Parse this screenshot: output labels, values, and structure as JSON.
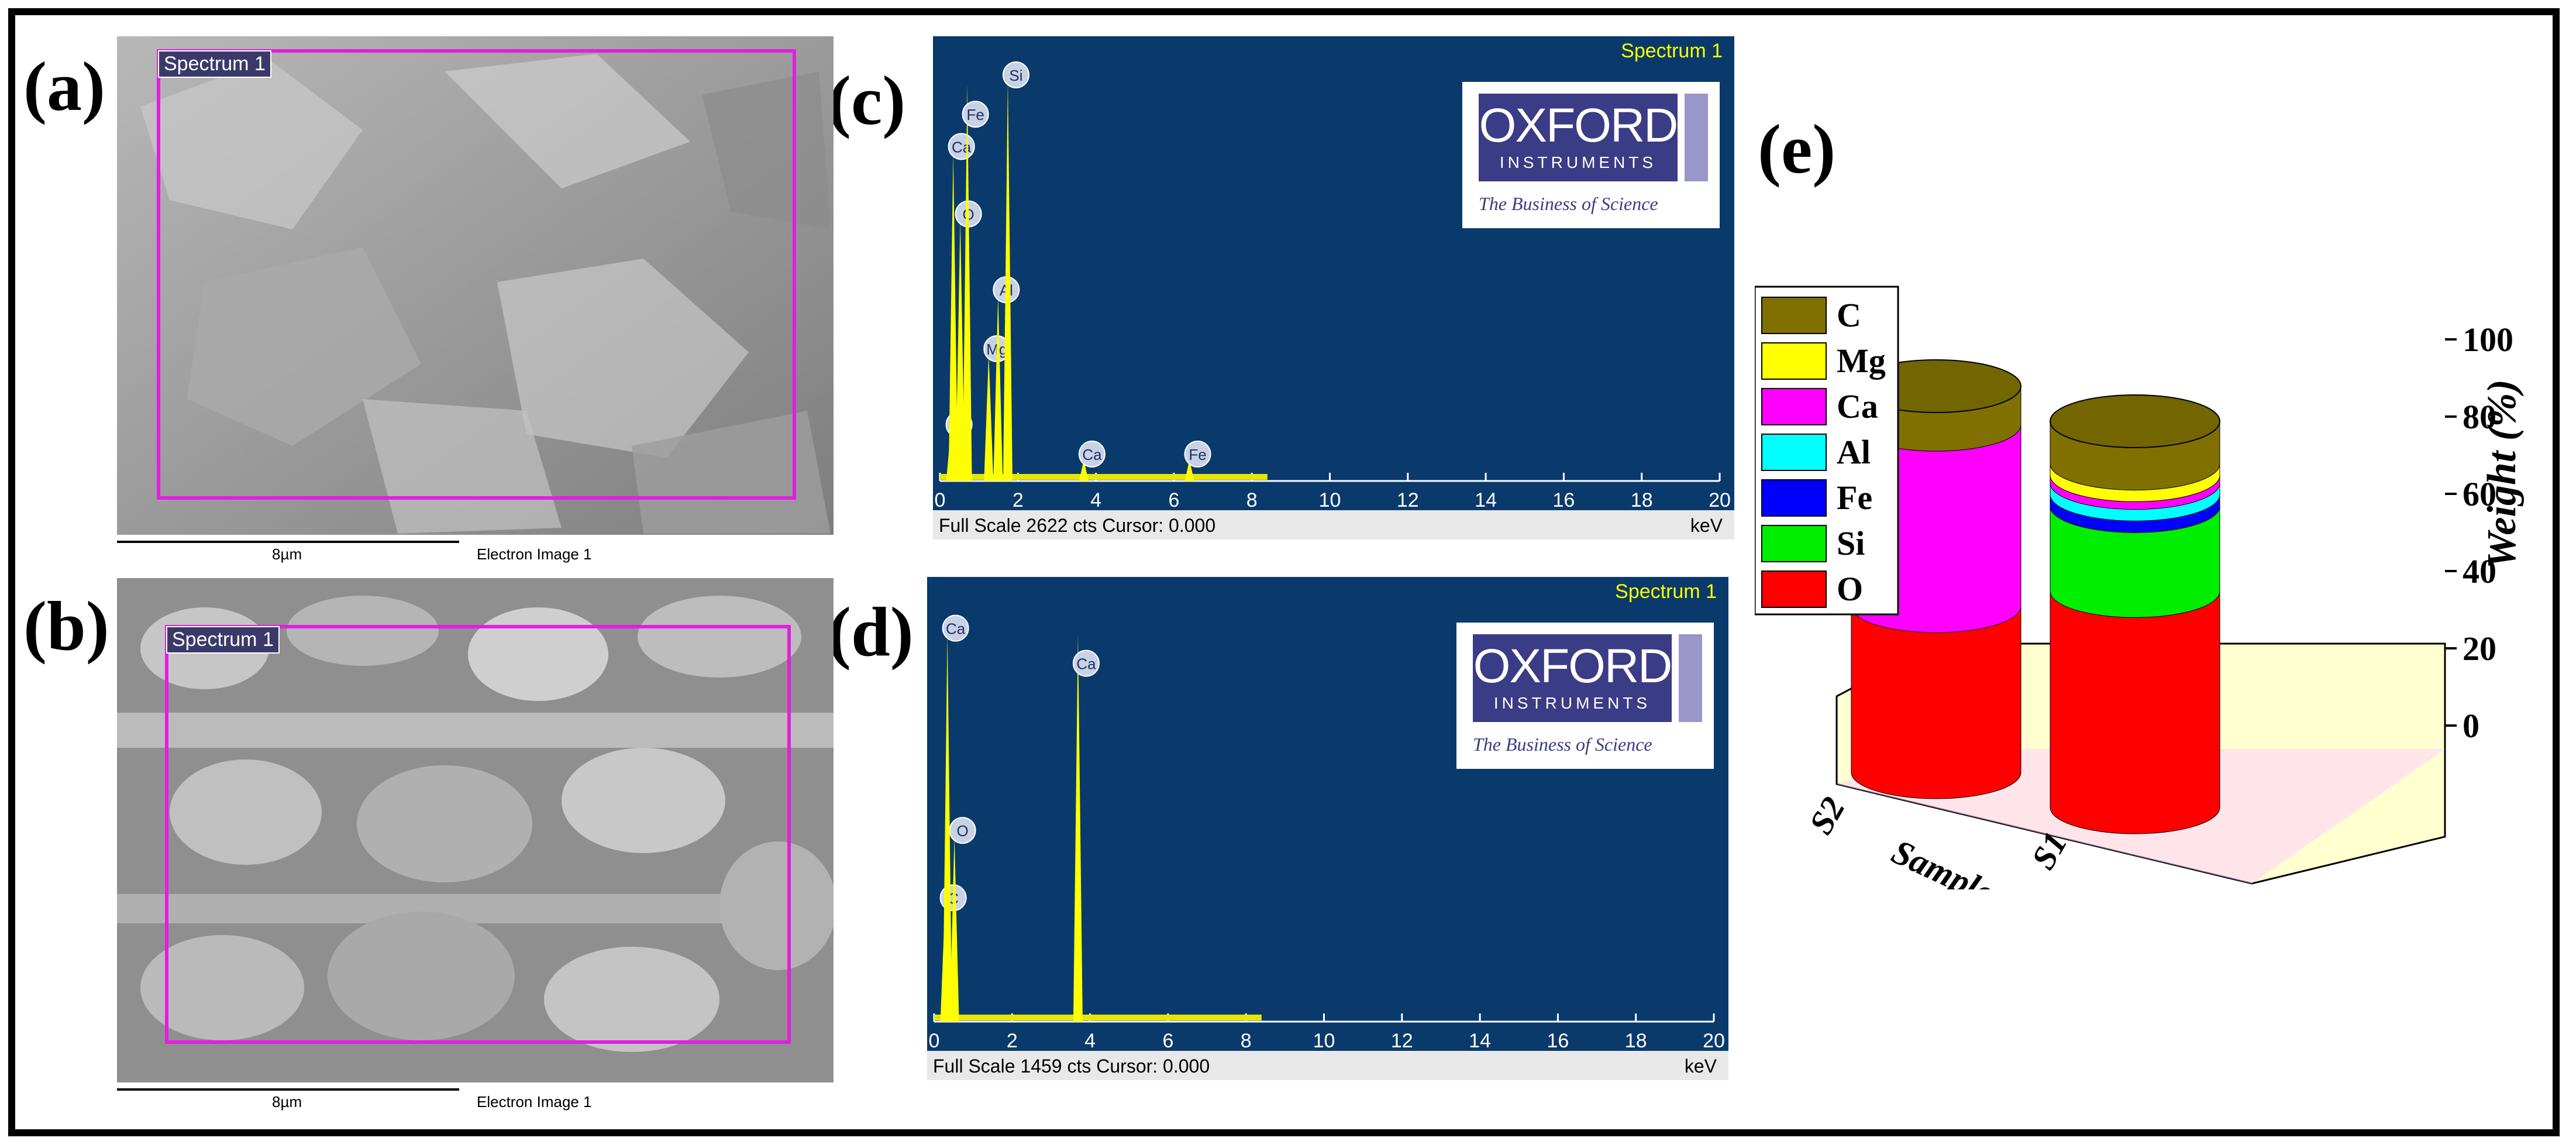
{
  "panels": {
    "a": "(a)",
    "b": "(b)",
    "c": "(c)",
    "d": "(d)",
    "e": "(e)"
  },
  "sem": [
    {
      "tag": "Spectrum 1",
      "scale": "8µm",
      "caption": "Electron Image 1"
    },
    {
      "tag": "Spectrum 1",
      "scale": "8µm",
      "caption": "Electron Image 1"
    }
  ],
  "eds": [
    {
      "title": "Spectrum 1",
      "footer": "Full Scale 2622 cts Cursor: 0.000",
      "unit": "keV",
      "ticks": [
        "0",
        "2",
        "4",
        "6",
        "8",
        "10",
        "12",
        "14",
        "16",
        "18",
        "20"
      ],
      "peaks": [
        {
          "el": "C",
          "kev": 0.28,
          "h": 0.12
        },
        {
          "el": "O",
          "kev": 0.52,
          "h": 0.62
        },
        {
          "el": "Ca",
          "kev": 0.34,
          "h": 0.78
        },
        {
          "el": "Fe",
          "kev": 0.7,
          "h": 0.94
        },
        {
          "el": "Mg",
          "kev": 1.25,
          "h": 0.3
        },
        {
          "el": "Al",
          "kev": 1.49,
          "h": 0.44
        },
        {
          "el": "Si",
          "kev": 1.74,
          "h": 0.95
        },
        {
          "el": "Ca",
          "kev": 3.69,
          "h": 0.05
        },
        {
          "el": "Fe",
          "kev": 6.4,
          "h": 0.05
        }
      ],
      "logo": {
        "line1": "OXFORD",
        "line2": "INSTRUMENTS",
        "tagline": "The Business of Science"
      }
    },
    {
      "title": "Spectrum 1",
      "footer": "Full Scale 1459 cts Cursor: 0.000",
      "unit": "keV",
      "ticks": [
        "0",
        "2",
        "4",
        "6",
        "8",
        "10",
        "12",
        "14",
        "16",
        "18",
        "20"
      ],
      "peaks": [
        {
          "el": "C",
          "kev": 0.28,
          "h": 0.28
        },
        {
          "el": "O",
          "kev": 0.52,
          "h": 0.44
        },
        {
          "el": "Ca",
          "kev": 0.34,
          "h": 0.92
        },
        {
          "el": "Ca",
          "kev": 3.69,
          "h": 0.92
        }
      ],
      "logo": {
        "line1": "OXFORD",
        "line2": "INSTRUMENTS",
        "tagline": "The Business of Science"
      }
    }
  ],
  "chart_data": {
    "type": "bar",
    "categories": [
      "S2",
      "S1"
    ],
    "xlabel": "Sample",
    "ylabel": "Weight (%)",
    "ylim": [
      0,
      100
    ],
    "yticks": [
      "0",
      "20",
      "40",
      "60",
      "80",
      "100"
    ],
    "legend_placement": "left",
    "legend": [
      "C",
      "Mg",
      "Ca",
      "Al",
      "Fe",
      "Si",
      "O"
    ],
    "series": [
      {
        "name": "O",
        "color": "#ff0000",
        "values": [
          43,
          56
        ]
      },
      {
        "name": "Si",
        "color": "#00ee00",
        "values": [
          0,
          22
        ]
      },
      {
        "name": "Fe",
        "color": "#0000ff",
        "values": [
          0,
          3
        ]
      },
      {
        "name": "Al",
        "color": "#00ffff",
        "values": [
          0,
          3
        ]
      },
      {
        "name": "Ca",
        "color": "#ff00ff",
        "values": [
          47,
          2
        ]
      },
      {
        "name": "Mg",
        "color": "#ffff00",
        "values": [
          0,
          3
        ]
      },
      {
        "name": "C",
        "color": "#807000",
        "values": [
          10,
          11
        ]
      }
    ]
  }
}
